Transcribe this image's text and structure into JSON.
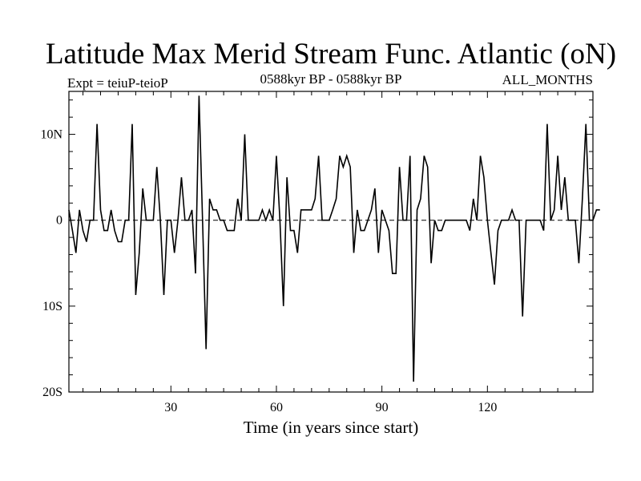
{
  "chart_data": {
    "type": "line",
    "title": "Latitude Max Merid Stream Func. Atlantic (oN)",
    "subtitle_left": "Expt = teiuP-teioP",
    "subtitle_center": "0588kyr BP - 0588kyr BP",
    "subtitle_right": "ALL_MONTHS",
    "xlabel": "Time (in years since start)",
    "ylabel": "",
    "xlim": [
      1,
      150
    ],
    "ylim": [
      -20,
      15
    ],
    "x_ticks": [
      30,
      60,
      90,
      120
    ],
    "x_tick_labels": [
      "30",
      "60",
      "90",
      "120"
    ],
    "y_ticks": [
      10,
      0,
      -10,
      -20
    ],
    "y_tick_labels": [
      "10N",
      "0",
      "10S",
      "20S"
    ],
    "zero_line": "dashed",
    "series": [
      {
        "values": [
          1.2,
          -1.2,
          -3.8,
          1.2,
          -1.2,
          -2.5,
          0,
          0,
          11.2,
          1.2,
          -1.2,
          -1.2,
          1.2,
          -1.2,
          -2.5,
          -2.5,
          0,
          0,
          11.2,
          -8.7,
          -3.8,
          3.7,
          0,
          0,
          0,
          6.2,
          0,
          -8.7,
          0,
          0,
          -3.8,
          0,
          5,
          0,
          0,
          1.2,
          -6.2,
          14.5,
          0,
          -15,
          2.5,
          1.2,
          1.2,
          0,
          0,
          -1.2,
          -1.2,
          -1.2,
          2.5,
          0,
          10,
          0,
          0,
          0,
          0,
          1.2,
          0,
          1.2,
          0,
          7.5,
          0,
          -10,
          5,
          -1.2,
          -1.2,
          -3.8,
          1.2,
          1.2,
          1.2,
          1.2,
          2.5,
          7.5,
          0,
          0,
          0,
          1.2,
          2.5,
          7.5,
          6.2,
          7.5,
          6.2,
          -3.8,
          1.2,
          -1.2,
          -1.2,
          0,
          1.2,
          3.7,
          -3.8,
          1.2,
          0,
          -1.2,
          -6.2,
          -6.2,
          6.2,
          0,
          0,
          7.5,
          -18.8,
          1.2,
          2.5,
          7.5,
          6.2,
          -5,
          0,
          -1.2,
          -1.2,
          0,
          0,
          0,
          0,
          0,
          0,
          0,
          -1.2,
          2.5,
          0,
          7.5,
          5,
          0,
          -3.8,
          -7.5,
          -1.2,
          0,
          0,
          0,
          1.2,
          0,
          0,
          -11.2,
          0,
          0,
          0,
          0,
          0,
          -1.2,
          11.2,
          0,
          1.2,
          7.5,
          1.2,
          5,
          0,
          0,
          0,
          -5,
          2.5,
          11.2,
          0,
          0,
          1.2,
          1.2
        ]
      }
    ]
  }
}
